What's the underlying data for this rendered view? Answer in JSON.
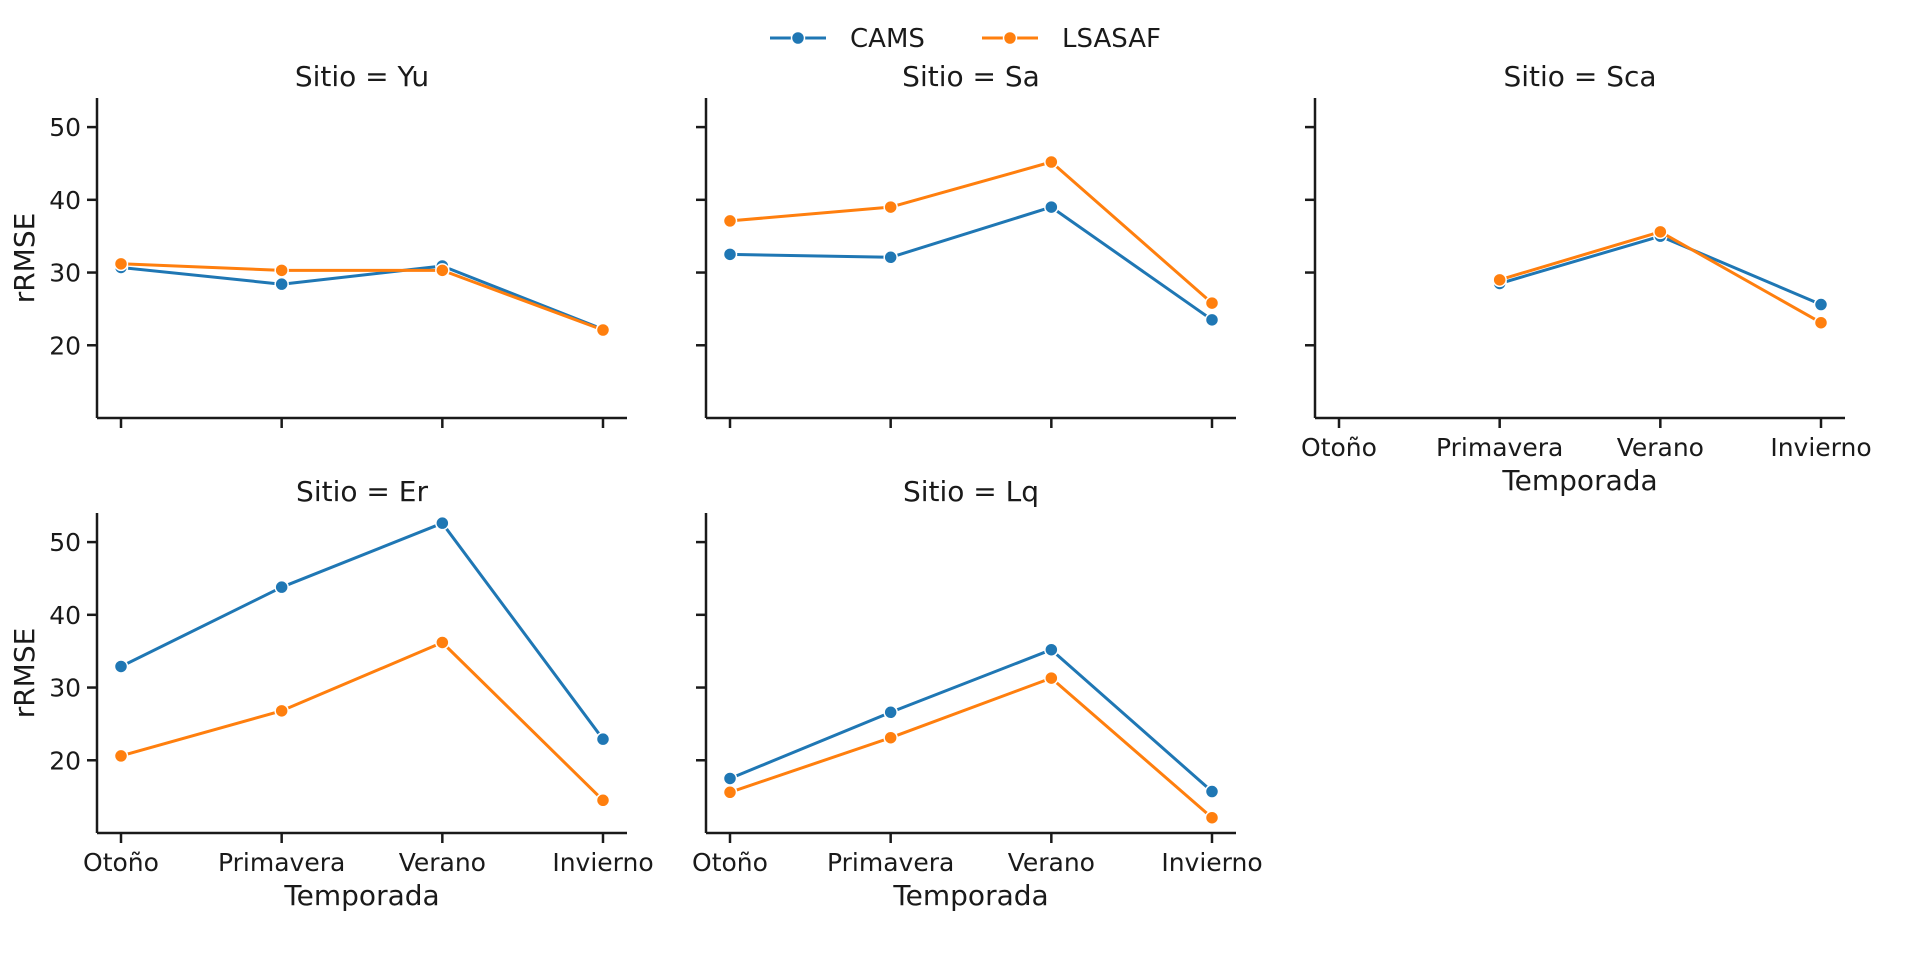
{
  "chart_data": {
    "type": "line",
    "legend": {
      "placement": "top-center"
    },
    "categories": [
      "Otoño",
      "Primavera",
      "Verano",
      "Invierno"
    ],
    "ylim": [
      10,
      54
    ],
    "yticks": [
      20,
      30,
      40,
      50
    ],
    "xlabel": "Temporada",
    "ylabel": "rRMSE",
    "colors": {
      "CAMS": "#1f77b4",
      "LSASAF": "#ff7f0e"
    },
    "panels": [
      {
        "title": "Sitio = Yu",
        "series": [
          {
            "name": "CAMS",
            "values": [
              30.7,
              28.4,
              30.9,
              22.2
            ]
          },
          {
            "name": "LSASAF",
            "values": [
              31.2,
              30.3,
              30.3,
              22.1
            ]
          }
        ]
      },
      {
        "title": "Sitio = Sa",
        "series": [
          {
            "name": "CAMS",
            "values": [
              32.5,
              32.1,
              39.0,
              23.5
            ]
          },
          {
            "name": "LSASAF",
            "values": [
              37.1,
              39.0,
              45.2,
              25.8
            ]
          }
        ]
      },
      {
        "title": "Sitio = Sca",
        "series": [
          {
            "name": "CAMS",
            "values": [
              null,
              28.5,
              35.0,
              25.6
            ]
          },
          {
            "name": "LSASAF",
            "values": [
              null,
              29.0,
              35.6,
              23.1
            ]
          }
        ]
      },
      {
        "title": "Sitio = Er",
        "series": [
          {
            "name": "CAMS",
            "values": [
              32.9,
              43.8,
              52.6,
              22.9
            ]
          },
          {
            "name": "LSASAF",
            "values": [
              20.6,
              26.8,
              36.2,
              14.5
            ]
          }
        ]
      },
      {
        "title": "Sitio = Lq",
        "series": [
          {
            "name": "CAMS",
            "values": [
              17.5,
              26.6,
              35.2,
              15.7
            ]
          },
          {
            "name": "LSASAF",
            "values": [
              15.6,
              23.1,
              31.3,
              12.1
            ]
          }
        ]
      }
    ]
  }
}
